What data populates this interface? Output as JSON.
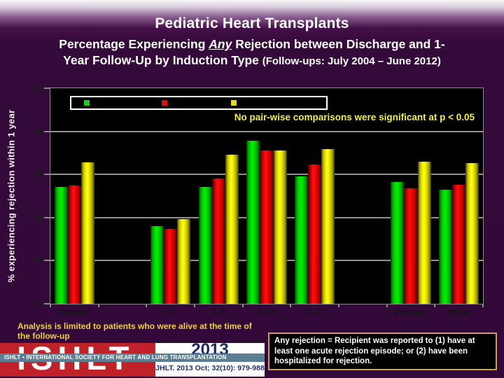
{
  "slide": {
    "title": "Pediatric Heart Transplants",
    "subtitle": {
      "line1_pre": "Percentage Experiencing ",
      "line1_any": "Any",
      "line1_post": " Rejection between Discharge and 1-",
      "line2_main": "Year Follow-Up by Induction Type ",
      "line2_paren": "(Follow-ups: July 2004 – June 2012)"
    }
  },
  "chart_data": {
    "type": "bar",
    "title": "",
    "xlabel": "",
    "ylabel": "% experiencing rejection within 1 year",
    "ylim": [
      0,
      50
    ],
    "yticks": [
      0,
      10,
      20,
      30,
      40,
      50
    ],
    "grid": true,
    "plot_background": "#000000",
    "categories": [
      "Overall",
      "<1",
      "1-5",
      "6-10",
      "11-17",
      "Female",
      "Male"
    ],
    "slot_indices": [
      0,
      2,
      3,
      4,
      5,
      7,
      8
    ],
    "num_slots": 9,
    "series": [
      {
        "name": "green",
        "color": "#00ee00",
        "values": [
          27.1,
          18.0,
          27.1,
          37.8,
          29.5,
          28.2,
          26.4
        ]
      },
      {
        "name": "red",
        "color": "#ee0a0a",
        "values": [
          27.4,
          17.4,
          29.0,
          35.5,
          32.3,
          26.8,
          27.6
        ]
      },
      {
        "name": "yellow",
        "color": "#f2ee0a",
        "values": [
          32.8,
          19.7,
          34.6,
          35.5,
          35.9,
          32.9,
          32.6
        ]
      }
    ],
    "legend": {
      "position": "top-left-inside-plot",
      "labels_visible": false,
      "swatch_colors": [
        "#22cc22",
        "#dd1111",
        "#e8d820"
      ]
    },
    "annotation": "No pair-wise comparisons were significant at p < 0.05"
  },
  "footnote": {
    "text": "Analysis is limited to patients who were alive at the time of the follow-up"
  },
  "logo": {
    "acronym": "ISHLT",
    "band_text": "ISHLT • INTERNATIONAL SOCIETY FOR HEART AND LUNG TRANSPLANTATION",
    "year": "2013",
    "citation": "JHLT. 2013 Oct; 32(10): 979-988"
  },
  "definition_box": {
    "text": "Any rejection = Recipient was reported to (1) have at least one acute rejection episode; or (2) have been hospitalized for rejection."
  },
  "colors": {
    "slide_background": "#320939",
    "title_text": "#ffffff",
    "axis_and_grid": "#8c8c8c",
    "tick_label_text": "#1e1e1e",
    "annotation_yellow": "#f2ee55",
    "footnote_yellow": "#eccf49",
    "logo_red": "#bf2329",
    "logo_band_blue": "#5a7e92",
    "logo_navy": "#1c2a66",
    "definition_border_gold": "#c8a243"
  }
}
